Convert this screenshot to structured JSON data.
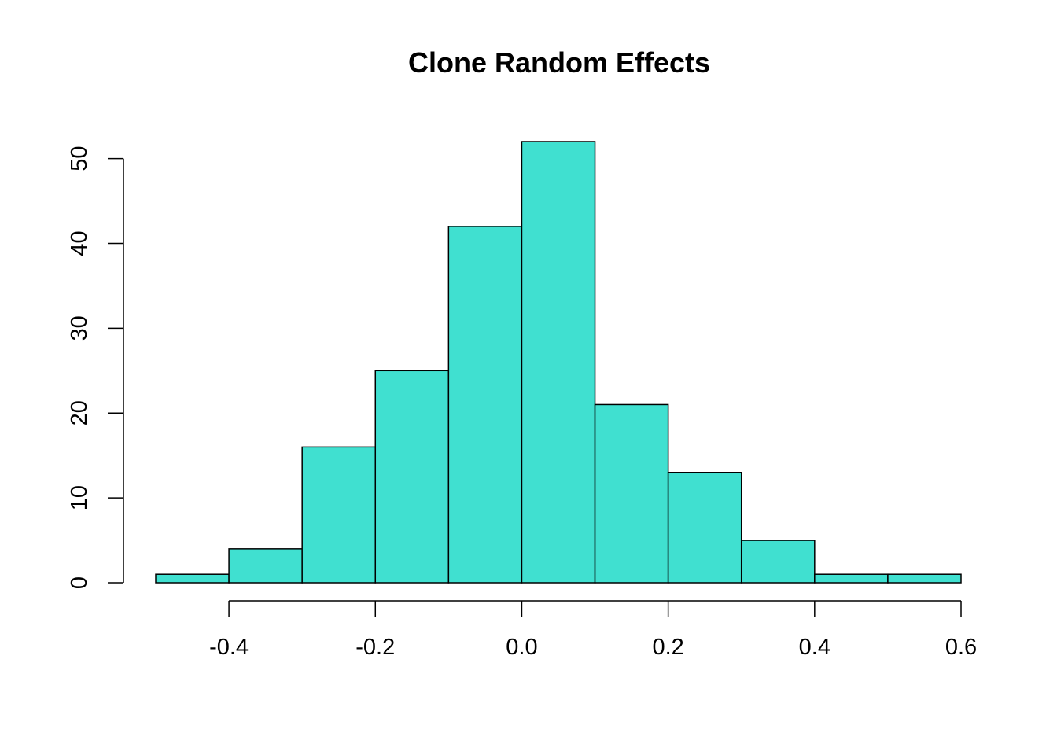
{
  "chart_data": {
    "type": "bar",
    "subtype": "histogram",
    "title": "Clone Random Effects",
    "xlabel": "",
    "ylabel": "",
    "bar_color": "#40E0D0",
    "bin_edges": [
      -0.5,
      -0.4,
      -0.3,
      -0.2,
      -0.1,
      0.0,
      0.1,
      0.2,
      0.3,
      0.4,
      0.5,
      0.6
    ],
    "values": [
      1,
      4,
      16,
      25,
      42,
      52,
      21,
      13,
      5,
      1,
      1
    ],
    "xlim": [
      -0.5,
      0.6
    ],
    "ylim": [
      0,
      52
    ],
    "x_ticks": [
      -0.4,
      -0.2,
      0.0,
      0.2,
      0.4,
      0.6
    ],
    "x_tick_labels": [
      "-0.4",
      "-0.2",
      "0.0",
      "0.2",
      "0.4",
      "0.6"
    ],
    "y_ticks": [
      0,
      10,
      20,
      30,
      40,
      50
    ],
    "y_tick_labels": [
      "0",
      "10",
      "20",
      "30",
      "40",
      "50"
    ],
    "grid": false,
    "legend": "none"
  }
}
